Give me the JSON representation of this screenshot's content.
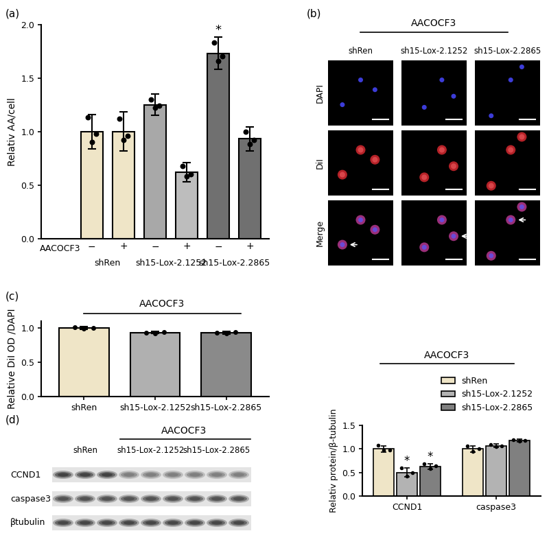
{
  "chart_data": [
    {
      "panel": "(a)",
      "type": "bar",
      "y_label": "Relativ AA/cell",
      "categories": [
        "−",
        "+",
        "−",
        "+",
        "−",
        "+"
      ],
      "treatment_label": "AACOCF3",
      "group_labels": [
        "shRen",
        "sh15-Lox-2.1252",
        "sh15-Lox-2.2865"
      ],
      "values": [
        1.0,
        1.0,
        1.25,
        0.62,
        1.73,
        0.93
      ],
      "errors": [
        0.16,
        0.18,
        0.1,
        0.09,
        0.15,
        0.11
      ],
      "points": [
        [
          1.13,
          0.9,
          0.98
        ],
        [
          1.12,
          0.92,
          0.96
        ],
        [
          1.3,
          1.22,
          1.24
        ],
        [
          0.68,
          0.58,
          0.6
        ],
        [
          1.83,
          1.66,
          1.7
        ],
        [
          1.0,
          0.88,
          0.92
        ]
      ],
      "colors": [
        "#efe5c7",
        "#efe5c7",
        "#a8a8a8",
        "#bdbdbd",
        "#707070",
        "#707070"
      ],
      "ylim": [
        0,
        2.0
      ],
      "yticks": [
        {
          "value": 0,
          "label": "0.0"
        },
        {
          "value": 0.5,
          "label": "0.5"
        },
        {
          "value": 1.0,
          "label": "1.0"
        },
        {
          "value": 1.5,
          "label": "1.5"
        },
        {
          "value": 2.0,
          "label": "2.0"
        }
      ],
      "annotations": [
        {
          "index": 4,
          "text": "*"
        }
      ]
    },
    {
      "panel": "(c)",
      "type": "bar",
      "header": "AACOCF3",
      "y_label": "Relative DiI OD /DAPI",
      "categories": [
        "shRen",
        "sh15-Lox-2.1252",
        "sh15-Lox-2.2865"
      ],
      "values": [
        1.0,
        0.93,
        0.93
      ],
      "errors": [
        0.02,
        0.015,
        0.02
      ],
      "points": [
        [
          1.01,
          0.99,
          1.0
        ],
        [
          0.93,
          0.92,
          0.94
        ],
        [
          0.93,
          0.92,
          0.94
        ]
      ],
      "colors": [
        "#efe5c7",
        "#b0b0b0",
        "#8a8a8a"
      ],
      "ylim": [
        0,
        1.1
      ],
      "yticks": [
        {
          "value": 0,
          "label": "0.0"
        },
        {
          "value": 0.5,
          "label": "0.5"
        },
        {
          "value": 1.0,
          "label": "1.0"
        }
      ]
    },
    {
      "type": "bar",
      "header": "AACOCF3",
      "y_label": "Relativ protein/β-tubulin",
      "categories": [
        "CCND1",
        "caspase3"
      ],
      "series": [
        {
          "name": "shRen",
          "color": "#efe5c7",
          "values": [
            1.0,
            1.0
          ],
          "errors": [
            0.07,
            0.07
          ],
          "points": [
            [
              1.08,
              0.98,
              0.97
            ],
            [
              1.07,
              0.95,
              1.0
            ]
          ]
        },
        {
          "name": "sh15-Lox-2.1252",
          "color": "#b3b3b3",
          "values": [
            0.5,
            1.07
          ],
          "errors": [
            0.1,
            0.04
          ],
          "points": [
            [
              0.6,
              0.42,
              0.5
            ],
            [
              1.1,
              1.05,
              1.07
            ]
          ]
        },
        {
          "name": "sh15-Lox-2.2865",
          "color": "#808080",
          "values": [
            0.63,
            1.18
          ],
          "errors": [
            0.06,
            0.03
          ],
          "points": [
            [
              0.68,
              0.58,
              0.64
            ],
            [
              1.2,
              1.17,
              1.18
            ]
          ]
        }
      ],
      "legend": "upper right",
      "ylim": [
        0,
        1.5
      ],
      "yticks": [
        {
          "value": 0,
          "label": "0.0"
        },
        {
          "value": 0.5,
          "label": "0.5"
        },
        {
          "value": 1.0,
          "label": "1.0"
        },
        {
          "value": 1.5,
          "label": "1.5"
        }
      ],
      "annotations": [
        {
          "series": 1,
          "index": 0,
          "text": "*"
        },
        {
          "series": 2,
          "index": 0,
          "text": "*"
        }
      ]
    }
  ],
  "images": [
    {
      "panel": "(b)",
      "header": "AACOCF3",
      "columns": [
        "shRen",
        "sh15-Lox-2.1252",
        "sh15-Lox-2.2865"
      ],
      "rows": [
        "DAPI",
        "DiI",
        "Merge"
      ]
    },
    {
      "panel": "(d)",
      "header": "AACOCF3",
      "columns": [
        "shRen",
        "sh15-Lox-2.1252",
        "sh15-Lox-2.2865"
      ],
      "rows": [
        "CCND1",
        "caspase3",
        "βtubulin"
      ]
    }
  ]
}
